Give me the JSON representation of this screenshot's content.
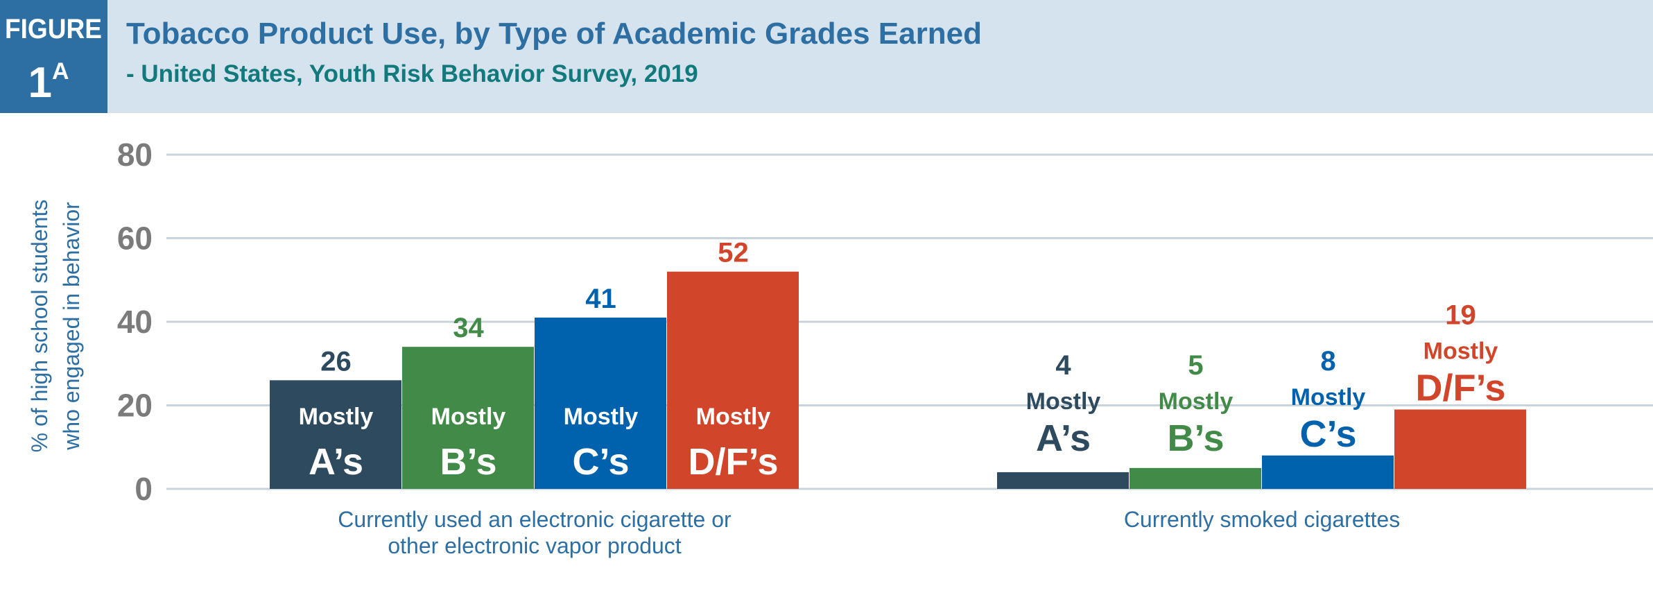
{
  "header": {
    "figure_label": "FIGURE",
    "figure_number": "1",
    "figure_suffix": "A",
    "title": "Tobacco Product  Use, by Type of Academic Grades Earned",
    "subtitle": "- United States, Youth Risk Behavior Survey, 2019"
  },
  "colors": {
    "header_bg": "#d5e3ee",
    "figure_box": "#2e6fa3",
    "title": "#2e6fa3",
    "subtitle": "#12797c",
    "mostly_as": "#2d4a5f",
    "mostly_bs": "#428a48",
    "mostly_cs": "#0062ad",
    "mostly_dfs": "#d1462a"
  },
  "chart_data": {
    "type": "bar",
    "ylabel_lines": [
      "% of high school students",
      "who engaged in behavior"
    ],
    "ylim": [
      0,
      80
    ],
    "yticks": [
      "0",
      "20",
      "40",
      "60",
      "80"
    ],
    "grid": true,
    "categories": [
      {
        "lines": [
          "Currently used an electronic cigarette or",
          "other electronic vapor product"
        ]
      },
      {
        "lines": [
          "Currently smoked cigarettes"
        ]
      }
    ],
    "series": [
      {
        "prefix": "Mostly",
        "name": "A’s",
        "values": [
          26,
          4
        ]
      },
      {
        "prefix": "Mostly",
        "name": "B’s",
        "values": [
          34,
          5
        ]
      },
      {
        "prefix": "Mostly",
        "name": "C’s",
        "values": [
          41,
          8
        ]
      },
      {
        "prefix": "Mostly",
        "name": "D/F’s",
        "values": [
          52,
          19
        ]
      }
    ]
  }
}
